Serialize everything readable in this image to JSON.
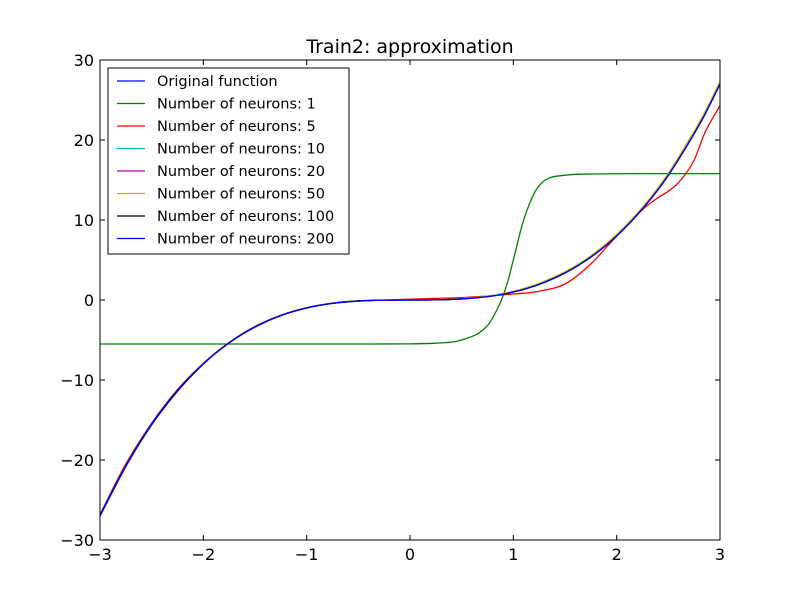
{
  "chart_data": {
    "type": "line",
    "title": "Train2: approximation",
    "xlabel": "",
    "ylabel": "",
    "xlim": [
      -3,
      3
    ],
    "ylim": [
      -30,
      30
    ],
    "xticks": [
      -3,
      -2,
      -1,
      0,
      1,
      2,
      3
    ],
    "yticks": [
      -30,
      -20,
      -10,
      0,
      10,
      20,
      30
    ],
    "xtick_labels": [
      "−3",
      "−2",
      "−1",
      "0",
      "1",
      "2",
      "3"
    ],
    "ytick_labels": [
      "−30",
      "−20",
      "−10",
      "0",
      "10",
      "20",
      "30"
    ],
    "grid": false,
    "legend_position": "upper-left",
    "x": [
      -3.0,
      -2.75,
      -2.5,
      -2.25,
      -2.0,
      -1.75,
      -1.5,
      -1.25,
      -1.0,
      -0.75,
      -0.5,
      -0.25,
      0.0,
      0.25,
      0.5,
      0.75,
      0.85,
      0.9,
      0.95,
      1.0,
      1.1,
      1.25,
      1.5,
      1.75,
      2.0,
      2.25,
      2.4,
      2.5,
      2.6,
      2.75,
      2.85,
      3.0
    ],
    "series": [
      {
        "name": "Original function",
        "color": "#0000ff",
        "values": [
          -27.0,
          -20.8,
          -15.6,
          -11.4,
          -8.0,
          -5.36,
          -3.38,
          -1.95,
          -1.0,
          -0.42,
          -0.13,
          -0.02,
          0.0,
          0.02,
          0.13,
          0.42,
          0.61,
          0.73,
          0.86,
          1.0,
          1.33,
          1.95,
          3.38,
          5.36,
          8.0,
          11.4,
          13.8,
          15.6,
          17.6,
          20.8,
          23.1,
          27.0
        ]
      },
      {
        "name": "Number of neurons: 1",
        "color": "#008000",
        "values": [
          -5.5,
          -5.5,
          -5.5,
          -5.5,
          -5.5,
          -5.5,
          -5.5,
          -5.5,
          -5.5,
          -5.5,
          -5.5,
          -5.49,
          -5.48,
          -5.4,
          -5.0,
          -3.2,
          -1.0,
          0.5,
          2.5,
          5.0,
          10.0,
          14.3,
          15.6,
          15.75,
          15.78,
          15.8,
          15.8,
          15.8,
          15.8,
          15.8,
          15.8,
          15.8
        ]
      },
      {
        "name": "Number of neurons: 5",
        "color": "#ff0000",
        "values": [
          -26.8,
          -20.5,
          -15.4,
          -11.2,
          -7.9,
          -5.3,
          -3.3,
          -1.9,
          -0.95,
          -0.4,
          -0.12,
          0.0,
          0.1,
          0.2,
          0.3,
          0.5,
          0.6,
          0.65,
          0.7,
          0.75,
          0.85,
          1.1,
          2.0,
          4.5,
          8.0,
          11.3,
          12.8,
          13.6,
          14.7,
          17.5,
          20.8,
          24.3
        ]
      },
      {
        "name": "Number of neurons: 10",
        "color": "#00bfbf",
        "values": [
          -26.9,
          -20.7,
          -15.5,
          -11.3,
          -7.95,
          -5.33,
          -3.35,
          -1.93,
          -0.98,
          -0.41,
          -0.12,
          -0.02,
          0.0,
          0.03,
          0.14,
          0.44,
          0.63,
          0.76,
          0.89,
          1.03,
          1.37,
          2.0,
          3.45,
          5.45,
          8.1,
          11.5,
          13.9,
          15.7,
          17.8,
          21.0,
          23.3,
          27.2
        ]
      },
      {
        "name": "Number of neurons: 20",
        "color": "#bf00bf",
        "values": [
          -26.9,
          -20.7,
          -15.5,
          -11.3,
          -7.95,
          -5.33,
          -3.35,
          -1.93,
          -0.98,
          -0.41,
          -0.12,
          -0.02,
          0.0,
          0.03,
          0.14,
          0.43,
          0.62,
          0.75,
          0.88,
          1.02,
          1.36,
          1.99,
          3.43,
          5.42,
          8.06,
          11.45,
          13.85,
          15.65,
          17.7,
          20.9,
          23.2,
          27.1
        ]
      },
      {
        "name": "Number of neurons: 50",
        "color": "#bfbf00",
        "values": [
          -26.9,
          -20.7,
          -15.5,
          -11.3,
          -7.95,
          -5.33,
          -3.35,
          -1.93,
          -0.98,
          -0.41,
          -0.11,
          -0.01,
          0.02,
          0.05,
          0.17,
          0.48,
          0.68,
          0.81,
          0.95,
          1.1,
          1.44,
          2.08,
          3.53,
          5.53,
          8.2,
          11.6,
          14.05,
          15.85,
          17.9,
          21.1,
          23.4,
          27.3
        ]
      },
      {
        "name": "Number of neurons: 100",
        "color": "#000000",
        "values": [
          -26.9,
          -20.7,
          -15.5,
          -11.3,
          -7.96,
          -5.34,
          -3.36,
          -1.94,
          -0.99,
          -0.41,
          -0.12,
          -0.02,
          0.0,
          0.02,
          0.13,
          0.42,
          0.61,
          0.73,
          0.86,
          1.0,
          1.33,
          1.96,
          3.39,
          5.37,
          8.01,
          11.4,
          13.8,
          15.6,
          17.6,
          20.8,
          23.1,
          27.0
        ]
      },
      {
        "name": "Number of neurons: 200",
        "color": "#0000ff",
        "values": [
          -27.0,
          -20.8,
          -15.6,
          -11.4,
          -8.0,
          -5.36,
          -3.38,
          -1.95,
          -1.0,
          -0.42,
          -0.13,
          -0.02,
          0.0,
          0.02,
          0.13,
          0.42,
          0.61,
          0.73,
          0.86,
          1.0,
          1.33,
          1.95,
          3.38,
          5.36,
          8.0,
          11.4,
          13.8,
          15.6,
          17.6,
          20.8,
          23.1,
          27.0
        ]
      }
    ]
  }
}
